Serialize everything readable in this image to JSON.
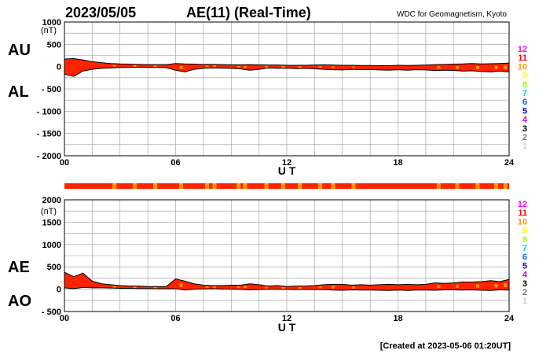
{
  "header": {
    "date": "2023/05/05",
    "title": "AE(11) (Real-Time)",
    "source": "WDC for Geomagnetism, Kyoto"
  },
  "footer": {
    "created": "[Created at 2023-05-06 01:20UT]"
  },
  "station_count_legend": {
    "labels": [
      "12",
      "11",
      "10",
      "9",
      "8",
      "7",
      "6",
      "5",
      "4",
      "3",
      "2",
      "1"
    ],
    "colors": [
      "#ff00ff",
      "#ff0000",
      "#ff9900",
      "#ffff00",
      "#99ff00",
      "#00cccc",
      "#0066ff",
      "#0000cc",
      "#cc00cc",
      "#000000",
      "#777777",
      "#cccccc"
    ]
  },
  "colors": {
    "fill_main": "#ff2200",
    "fill_alt": "#ff9900",
    "grid": "#999999",
    "strip_alt": "#ff9900"
  },
  "chart_data": [
    {
      "type": "area",
      "side_labels": {
        "upper": "AU",
        "lower": "AL"
      },
      "unit": "(nT)",
      "xlabel": "U T",
      "x_ticks": [
        "00",
        "06",
        "12",
        "18",
        "24"
      ],
      "ylim": [
        -2000,
        1000
      ],
      "y_ticks": [
        "1000",
        "500",
        "0",
        "- 500",
        "- 1000",
        "- 1500",
        "- 2000"
      ],
      "x_hours": [
        0,
        0.5,
        1,
        1.5,
        2,
        2.5,
        3,
        3.5,
        4,
        4.5,
        5,
        5.5,
        6,
        6.5,
        7,
        7.5,
        8,
        8.5,
        9,
        9.5,
        10,
        10.5,
        11,
        11.5,
        12,
        12.5,
        13,
        13.5,
        14,
        14.5,
        15,
        15.5,
        16,
        16.5,
        17,
        17.5,
        18,
        18.5,
        19,
        19.5,
        20,
        20.5,
        21,
        21.5,
        22,
        22.5,
        23,
        23.5,
        24
      ],
      "series": [
        {
          "name": "AU",
          "values": [
            170,
            180,
            150,
            110,
            90,
            70,
            60,
            55,
            50,
            45,
            45,
            45,
            70,
            60,
            55,
            50,
            50,
            45,
            40,
            40,
            45,
            40,
            35,
            35,
            30,
            30,
            30,
            35,
            40,
            35,
            30,
            30,
            25,
            25,
            20,
            20,
            30,
            25,
            30,
            35,
            45,
            50,
            55,
            60,
            70,
            60,
            65,
            70,
            80
          ]
        },
        {
          "name": "AL",
          "values": [
            -170,
            -220,
            -100,
            -60,
            -40,
            -30,
            -20,
            -15,
            -15,
            -20,
            -20,
            -25,
            -80,
            -120,
            -60,
            -40,
            -30,
            -35,
            -40,
            -50,
            -80,
            -60,
            -30,
            -40,
            -35,
            -45,
            -40,
            -50,
            -60,
            -70,
            -75,
            -60,
            -70,
            -65,
            -75,
            -80,
            -70,
            -80,
            -70,
            -75,
            -90,
            -80,
            -85,
            -100,
            -95,
            -110,
            -120,
            -100,
            -120
          ]
        }
      ]
    },
    {
      "type": "area",
      "side_labels": {
        "upper": "AE",
        "lower": "AO"
      },
      "unit": "(nT)",
      "xlabel": "U T",
      "x_ticks": [
        "00",
        "06",
        "12",
        "18",
        "24"
      ],
      "ylim": [
        -500,
        2000
      ],
      "y_ticks": [
        "2000",
        "1500",
        "1000",
        "500",
        "0",
        "- 500"
      ],
      "x_hours": [
        0,
        0.5,
        1,
        1.5,
        2,
        2.5,
        3,
        3.5,
        4,
        4.5,
        5,
        5.5,
        6,
        6.5,
        7,
        7.5,
        8,
        8.5,
        9,
        9.5,
        10,
        10.5,
        11,
        11.5,
        12,
        12.5,
        13,
        13.5,
        14,
        14.5,
        15,
        15.5,
        16,
        16.5,
        17,
        17.5,
        18,
        18.5,
        19,
        19.5,
        20,
        20.5,
        21,
        21.5,
        22,
        22.5,
        23,
        23.5,
        24
      ],
      "series": [
        {
          "name": "AE",
          "values": [
            380,
            280,
            360,
            180,
            120,
            100,
            80,
            70,
            70,
            60,
            60,
            60,
            230,
            180,
            120,
            90,
            80,
            80,
            90,
            90,
            120,
            100,
            70,
            80,
            60,
            70,
            70,
            80,
            100,
            110,
            110,
            90,
            100,
            90,
            100,
            110,
            100,
            110,
            100,
            110,
            140,
            130,
            140,
            160,
            160,
            170,
            190,
            170,
            220
          ]
        },
        {
          "name": "AO",
          "values": [
            30,
            10,
            40,
            30,
            30,
            25,
            20,
            20,
            15,
            15,
            10,
            10,
            10,
            -20,
            0,
            5,
            10,
            5,
            0,
            -5,
            -15,
            -10,
            0,
            -5,
            -5,
            -10,
            -5,
            -10,
            -10,
            -20,
            -25,
            -15,
            -20,
            -20,
            -25,
            -30,
            -20,
            -30,
            -20,
            -20,
            -25,
            -15,
            -15,
            -20,
            -15,
            -25,
            -30,
            -15,
            -20
          ]
        }
      ]
    }
  ],
  "station_strip": {
    "alt_hours": [
      2.7,
      3.8,
      4.9,
      6.3,
      7.7,
      8.1,
      9.4,
      9.75,
      10.9,
      11.8,
      12.7,
      13.8,
      14.5,
      15.6,
      20.2,
      21.2,
      22.3,
      23.3,
      23.8
    ]
  }
}
